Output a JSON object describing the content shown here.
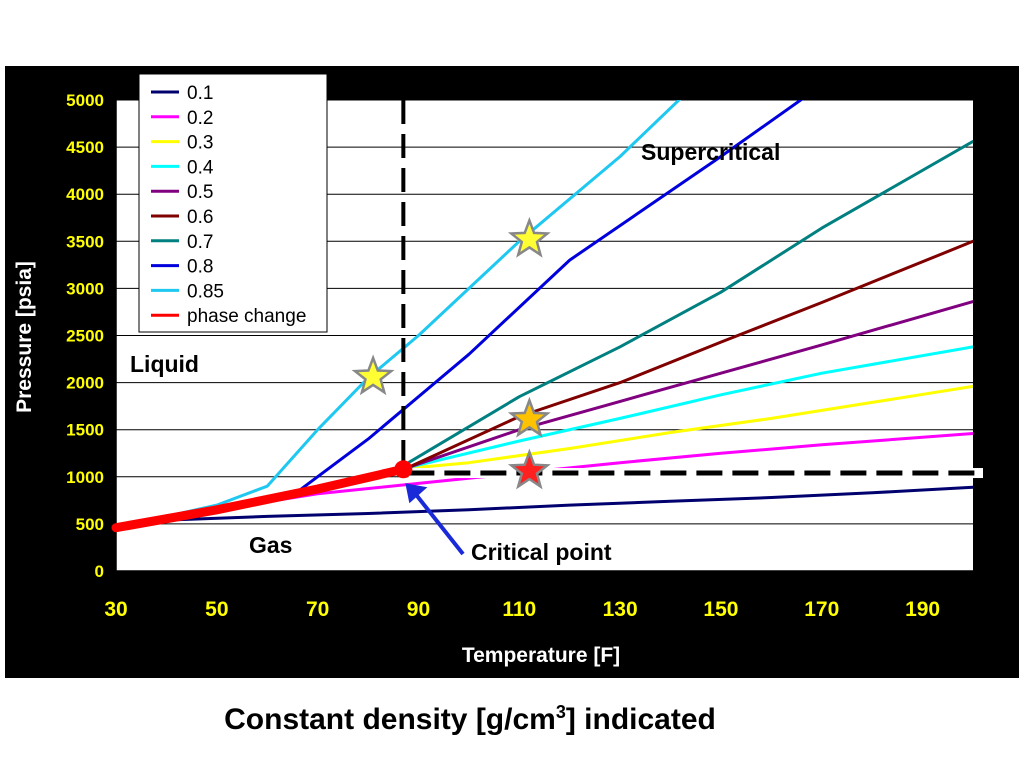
{
  "chart_data": {
    "type": "line",
    "xlabel": "Temperature [F]",
    "ylabel": "Pressure [psia]",
    "xlim": [
      30,
      200
    ],
    "ylim": [
      0,
      5000
    ],
    "x_ticks": [
      30,
      50,
      70,
      90,
      110,
      130,
      150,
      170,
      190
    ],
    "y_ticks": [
      0,
      500,
      1000,
      1500,
      2000,
      2500,
      3000,
      3500,
      4000,
      4500,
      5000
    ],
    "grid": "horizontal",
    "legend_position": "top-left",
    "series": [
      {
        "name": "0.1",
        "color": "#00006e",
        "points": [
          [
            30,
            460
          ],
          [
            40,
            540
          ],
          [
            60,
            580
          ],
          [
            80,
            610
          ],
          [
            100,
            650
          ],
          [
            120,
            700
          ],
          [
            140,
            740
          ],
          [
            160,
            780
          ],
          [
            180,
            830
          ],
          [
            200,
            890
          ]
        ]
      },
      {
        "name": "0.2",
        "color": "#ff00ff",
        "points": [
          [
            30,
            460
          ],
          [
            50,
            650
          ],
          [
            70,
            820
          ],
          [
            90,
            930
          ],
          [
            110,
            1040
          ],
          [
            130,
            1150
          ],
          [
            150,
            1250
          ],
          [
            170,
            1340
          ],
          [
            200,
            1460
          ]
        ]
      },
      {
        "name": "0.3",
        "color": "#ffff00",
        "points": [
          [
            88,
            1090
          ],
          [
            100,
            1150
          ],
          [
            120,
            1300
          ],
          [
            140,
            1470
          ],
          [
            160,
            1620
          ],
          [
            180,
            1790
          ],
          [
            200,
            1960
          ]
        ]
      },
      {
        "name": "0.4",
        "color": "#00ffff",
        "points": [
          [
            88,
            1100
          ],
          [
            110,
            1380
          ],
          [
            130,
            1620
          ],
          [
            150,
            1870
          ],
          [
            170,
            2100
          ],
          [
            200,
            2380
          ]
        ]
      },
      {
        "name": "0.5",
        "color": "#800080",
        "points": [
          [
            88,
            1100
          ],
          [
            110,
            1500
          ],
          [
            130,
            1800
          ],
          [
            150,
            2100
          ],
          [
            170,
            2400
          ],
          [
            200,
            2860
          ]
        ]
      },
      {
        "name": "0.6",
        "color": "#800000",
        "points": [
          [
            88,
            1100
          ],
          [
            110,
            1640
          ],
          [
            130,
            2000
          ],
          [
            150,
            2430
          ],
          [
            170,
            2850
          ],
          [
            200,
            3500
          ]
        ]
      },
      {
        "name": "0.7",
        "color": "#008080",
        "points": [
          [
            88,
            1150
          ],
          [
            110,
            1850
          ],
          [
            130,
            2380
          ],
          [
            150,
            2960
          ],
          [
            170,
            3640
          ],
          [
            200,
            4560
          ]
        ]
      },
      {
        "name": "0.8",
        "color": "#0000dd",
        "points": [
          [
            30,
            460
          ],
          [
            50,
            680
          ],
          [
            65,
            800
          ],
          [
            80,
            1400
          ],
          [
            100,
            2300
          ],
          [
            120,
            3300
          ],
          [
            150,
            4400
          ],
          [
            169,
            5120
          ]
        ]
      },
      {
        "name": "0.85",
        "color": "#1ec8f0",
        "points": [
          [
            30,
            460
          ],
          [
            50,
            700
          ],
          [
            60,
            900
          ],
          [
            70,
            1500
          ],
          [
            80,
            2050
          ],
          [
            90,
            2500
          ],
          [
            110,
            3500
          ],
          [
            130,
            4400
          ],
          [
            144,
            5120
          ]
        ]
      },
      {
        "name": "phase change",
        "color": "#ff0000",
        "points": [
          [
            30,
            460
          ],
          [
            50,
            650
          ],
          [
            70,
            870
          ],
          [
            87,
            1080
          ]
        ]
      }
    ],
    "markers": [
      {
        "type": "star",
        "color": "#ffff33",
        "x": 81,
        "y": 2060
      },
      {
        "type": "star",
        "color": "#ffff33",
        "x": 112,
        "y": 3520
      },
      {
        "type": "star",
        "color": "#ffc200",
        "x": 112,
        "y": 1610
      },
      {
        "type": "star",
        "color": "#ff2020",
        "x": 112,
        "y": 1060
      }
    ],
    "critical_point": {
      "x": 87,
      "y": 1080
    },
    "dashed_lines": [
      {
        "orientation": "vertical",
        "x": 87
      },
      {
        "orientation": "horizontal",
        "y": 1040
      }
    ],
    "annotations": {
      "supercritical": "Supercritical",
      "liquid": "Liquid",
      "gas": "Gas",
      "critical_point": "Critical point"
    }
  },
  "caption": {
    "before": "Constant density [g/cm",
    "superscript": "3",
    "after": "] indicated"
  }
}
